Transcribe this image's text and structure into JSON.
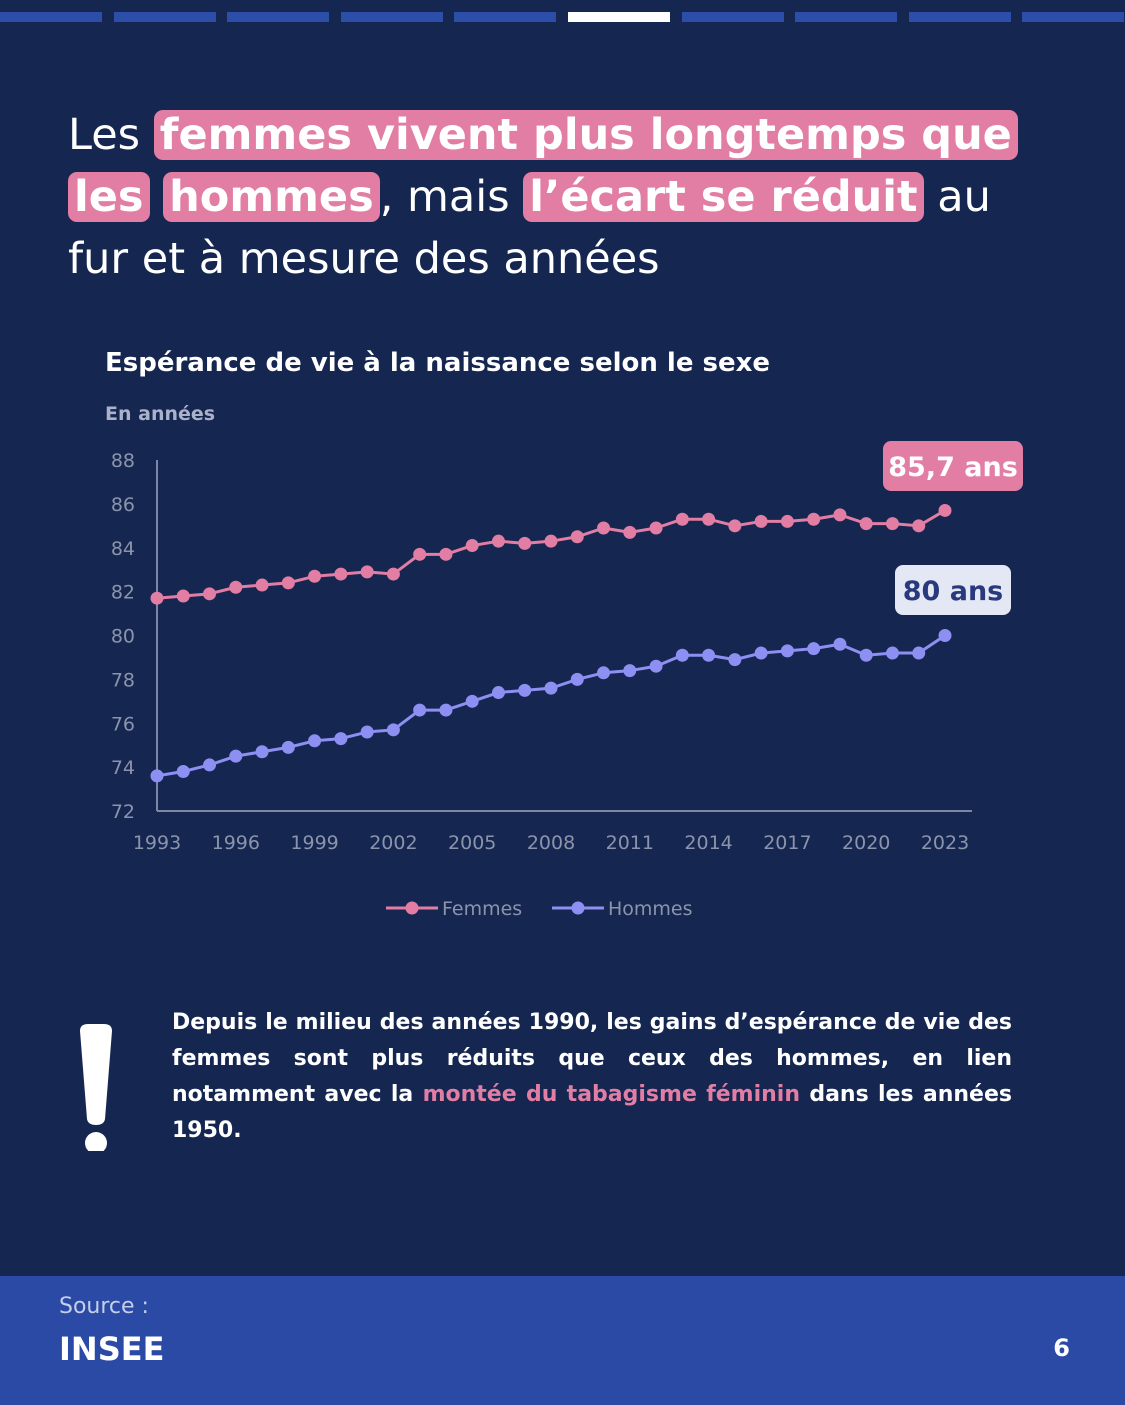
{
  "progress": {
    "segments": 10,
    "active_index": 5
  },
  "headline": {
    "part1": "Les ",
    "highlight1a": "femmes vivent plus longtemps que les",
    "highlight1b": "hommes",
    "part2": ", mais ",
    "highlight2": "l’écart se réduit",
    "part3": " au fur et à mesure des années"
  },
  "chart": {
    "title": "Espérance de vie à la naissance selon le sexe",
    "unit": "En années"
  },
  "chart_data": {
    "type": "line",
    "title": "Espérance de vie à la naissance selon le sexe",
    "ylabel": "En années",
    "xlabel": "",
    "ylim": [
      72,
      88
    ],
    "yticks": [
      "72",
      "74",
      "76",
      "78",
      "80",
      "82",
      "84",
      "86",
      "88"
    ],
    "xticks": [
      "1993",
      "1996",
      "1999",
      "2002",
      "2005",
      "2008",
      "2011",
      "2014",
      "2017",
      "2020",
      "2023"
    ],
    "x": [
      1993,
      1994,
      1995,
      1996,
      1997,
      1998,
      1999,
      2000,
      2001,
      2002,
      2003,
      2004,
      2005,
      2006,
      2007,
      2008,
      2009,
      2010,
      2011,
      2012,
      2013,
      2014,
      2015,
      2016,
      2017,
      2018,
      2019,
      2020,
      2021,
      2022,
      2023
    ],
    "grid": false,
    "legend": "bottom-center",
    "series": [
      {
        "name": "Femmes",
        "color": "#e27da3",
        "values": [
          81.7,
          81.8,
          81.9,
          82.2,
          82.3,
          82.4,
          82.7,
          82.8,
          82.9,
          82.8,
          83.7,
          83.7,
          84.1,
          84.3,
          84.2,
          84.3,
          84.5,
          84.9,
          84.7,
          84.9,
          85.3,
          85.3,
          85.0,
          85.2,
          85.2,
          85.3,
          85.5,
          85.1,
          85.1,
          85.0,
          85.7
        ],
        "end_label": "85,7 ans",
        "end_label_bg": "#e27da3",
        "end_label_color": "#ffffff"
      },
      {
        "name": "Hommes",
        "color": "#8d8ff2",
        "values": [
          73.6,
          73.8,
          74.1,
          74.5,
          74.7,
          74.9,
          75.2,
          75.3,
          75.6,
          75.7,
          76.6,
          76.6,
          77.0,
          77.4,
          77.5,
          77.6,
          78.0,
          78.3,
          78.4,
          78.6,
          79.1,
          79.1,
          78.9,
          79.2,
          79.3,
          79.4,
          79.6,
          79.1,
          79.2,
          79.2,
          80.0
        ],
        "end_label": "80 ans",
        "end_label_bg": "#e4e8f4",
        "end_label_color": "#283a7d"
      }
    ]
  },
  "alert": {
    "icon": "exclamation-icon",
    "text_before": "Depuis le milieu des années 1990, les gains d’espérance de vie des femmes sont plus réduits que ceux des hommes, en lien notamment avec la ",
    "text_emphasis": "montée du tabagisme féminin",
    "text_after": " dans les années 1950."
  },
  "footer": {
    "source_label": "Source :",
    "source_name": "INSEE",
    "page_number": "6"
  },
  "colors": {
    "background": "#152651",
    "footer": "#2a4aa6",
    "accent_pink": "#e27da3",
    "accent_blue": "#8d8ff2",
    "progress_inactive": "#2c4ea8",
    "progress_active": "#ffffff"
  }
}
